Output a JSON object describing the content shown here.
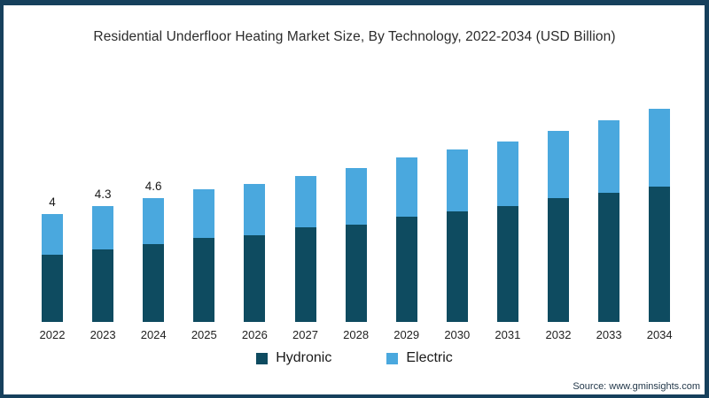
{
  "frame": {
    "border_color": "#16405C",
    "background": "#FFFFFF"
  },
  "title": "Residential Underfloor Heating Market Size, By Technology, 2022-2034 (USD Billion)",
  "legend": {
    "items": [
      {
        "label": "Hydronic",
        "color": "#0E4B60"
      },
      {
        "label": "Electric",
        "color": "#4AA8DE"
      }
    ]
  },
  "source": "Source: www.gminsights.com",
  "chart_data": {
    "type": "bar",
    "stacked": true,
    "title": "Residential Underfloor Heating Market Size, By Technology, 2022-2034 (USD Billion)",
    "xlabel": "",
    "ylabel": "USD Billion",
    "ylim": [
      0,
      8.5
    ],
    "grid": false,
    "legend_position": "bottom",
    "categories": [
      "2022",
      "2023",
      "2024",
      "2025",
      "2026",
      "2027",
      "2028",
      "2029",
      "2030",
      "2031",
      "2032",
      "2033",
      "2034"
    ],
    "series": [
      {
        "name": "Hydronic",
        "color": "#0E4B60",
        "values": [
          2.5,
          2.7,
          2.9,
          3.1,
          3.2,
          3.5,
          3.6,
          3.9,
          4.1,
          4.3,
          4.6,
          4.8,
          5.0
        ]
      },
      {
        "name": "Electric",
        "color": "#4AA8DE",
        "values": [
          1.5,
          1.6,
          1.7,
          1.8,
          1.9,
          1.9,
          2.1,
          2.2,
          2.3,
          2.4,
          2.5,
          2.7,
          2.9
        ]
      }
    ],
    "totals": [
      4.0,
      4.3,
      4.6,
      4.9,
      5.1,
      5.4,
      5.7,
      6.1,
      6.4,
      6.7,
      7.1,
      7.5,
      7.9
    ],
    "total_labels": [
      "4",
      "4.3",
      "4.6",
      "",
      "",
      "",
      "",
      "",
      "",
      "",
      "",
      "",
      ""
    ]
  }
}
